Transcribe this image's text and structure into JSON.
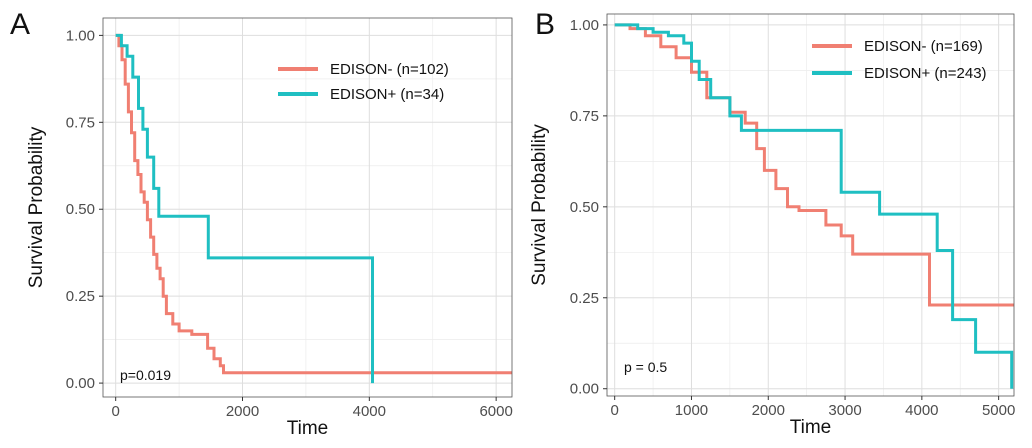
{
  "chart_data": [
    {
      "panel_label": "A",
      "type": "line",
      "subtype": "kaplan-meier-step",
      "xlabel": "Time",
      "ylabel": "Survival Probability",
      "xlim": [
        -200,
        6250
      ],
      "ylim": [
        -0.04,
        1.05
      ],
      "xticks": [
        0,
        2000,
        4000,
        6000
      ],
      "xtick_labels": [
        "0",
        "2000",
        "4000",
        "6000"
      ],
      "yticks": [
        0,
        0.25,
        0.5,
        0.75,
        1.0
      ],
      "ytick_labels": [
        "0.00",
        "0.25",
        "0.50",
        "0.75",
        "1.00"
      ],
      "grid": true,
      "legend_position": "top-right",
      "annotation": "p=0.019",
      "series": [
        {
          "name": "EDISON- (n=102)",
          "color": "#F07F72",
          "x": [
            0,
            50,
            100,
            150,
            200,
            250,
            300,
            350,
            400,
            450,
            500,
            550,
            600,
            650,
            700,
            750,
            800,
            900,
            1000,
            1200,
            1450,
            1550,
            1650,
            1700,
            6250
          ],
          "y": [
            1.0,
            0.97,
            0.93,
            0.86,
            0.78,
            0.72,
            0.64,
            0.6,
            0.55,
            0.52,
            0.47,
            0.42,
            0.37,
            0.33,
            0.3,
            0.25,
            0.2,
            0.17,
            0.15,
            0.14,
            0.1,
            0.07,
            0.05,
            0.03,
            0.03
          ]
        },
        {
          "name": "EDISON+ (n=34)",
          "color": "#1FBFC2",
          "x": [
            0,
            90,
            180,
            270,
            360,
            430,
            500,
            600,
            680,
            1460,
            4050
          ],
          "y": [
            1.0,
            0.97,
            0.94,
            0.88,
            0.79,
            0.73,
            0.65,
            0.56,
            0.48,
            0.36,
            0.0
          ]
        }
      ]
    },
    {
      "panel_label": "B",
      "type": "line",
      "subtype": "kaplan-meier-step",
      "xlabel": "Time",
      "ylabel": "Survival Probability",
      "xlim": [
        -100,
        5200
      ],
      "ylim": [
        -0.02,
        1.03
      ],
      "xticks": [
        0,
        1000,
        2000,
        3000,
        4000,
        5000
      ],
      "xtick_labels": [
        "0",
        "1000",
        "2000",
        "3000",
        "4000",
        "5000"
      ],
      "yticks": [
        0,
        0.25,
        0.5,
        0.75,
        1.0
      ],
      "ytick_labels": [
        "0.00",
        "0.25",
        "0.50",
        "0.75",
        "1.00"
      ],
      "grid": true,
      "legend_position": "top-right",
      "annotation": "p = 0.5",
      "series": [
        {
          "name": "EDISON- (n=169)",
          "color": "#F07F72",
          "x": [
            0,
            200,
            400,
            600,
            800,
            1000,
            1200,
            1500,
            1700,
            1850,
            1950,
            2100,
            2250,
            2400,
            2750,
            2950,
            3100,
            3500,
            4100,
            4350,
            5200
          ],
          "y": [
            1.0,
            0.99,
            0.97,
            0.94,
            0.91,
            0.87,
            0.8,
            0.76,
            0.73,
            0.66,
            0.6,
            0.55,
            0.5,
            0.49,
            0.45,
            0.42,
            0.37,
            0.37,
            0.23,
            0.23,
            0.23
          ]
        },
        {
          "name": "EDISON+ (n=243)",
          "color": "#1FBFC2",
          "x": [
            0,
            300,
            500,
            700,
            900,
            1000,
            1100,
            1250,
            1500,
            1650,
            2700,
            2950,
            3450,
            4200,
            4400,
            4700,
            5170
          ],
          "y": [
            1.0,
            0.99,
            0.98,
            0.97,
            0.95,
            0.9,
            0.85,
            0.8,
            0.75,
            0.71,
            0.71,
            0.54,
            0.48,
            0.38,
            0.19,
            0.1,
            0.0
          ]
        }
      ]
    }
  ]
}
